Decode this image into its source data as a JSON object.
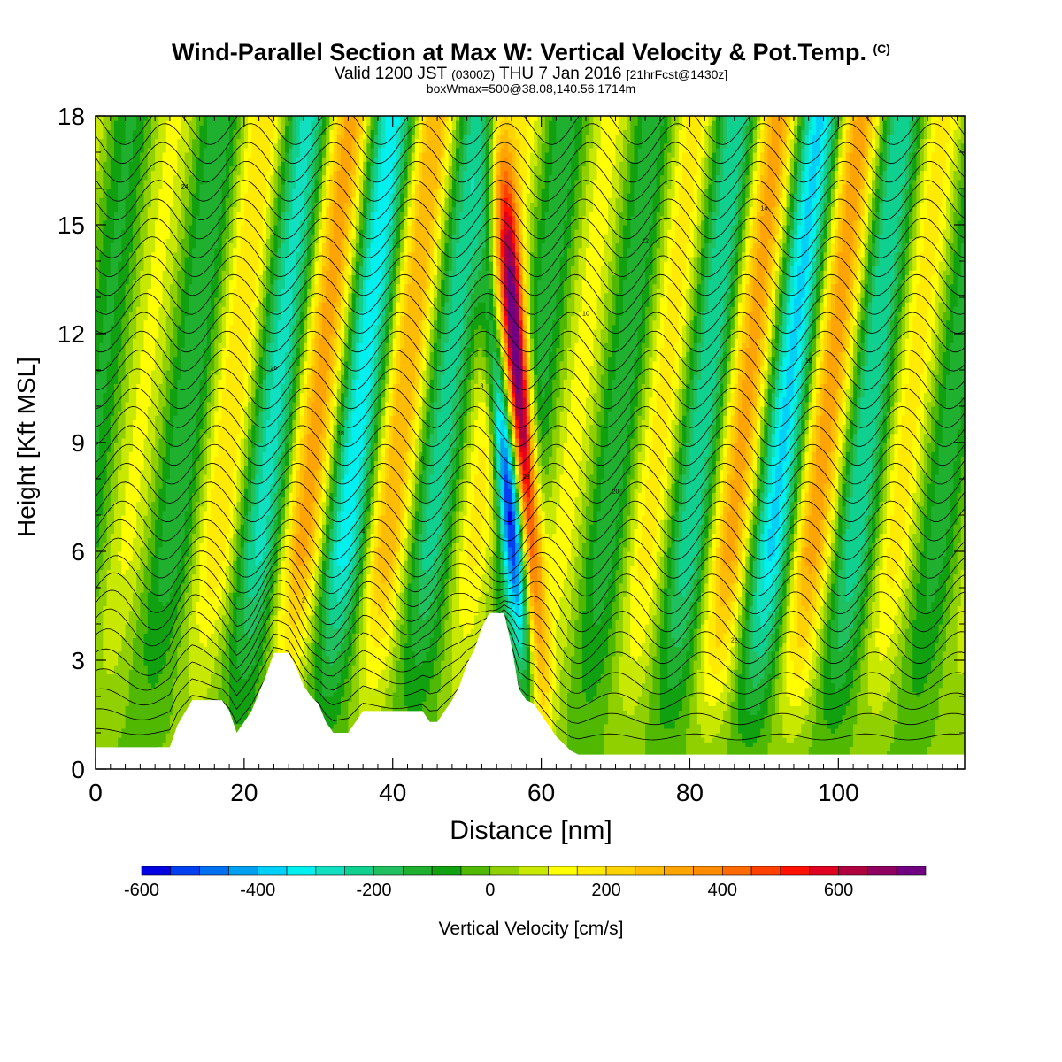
{
  "header": {
    "title": "Wind-Parallel Section at Max W: Vertical Velocity & Pot.Temp.",
    "title_suffix": "(C)",
    "valid_pre": "Valid 1200 JST",
    "valid_utc": "(0300Z)",
    "valid_post": "THU 7 Jan 2016",
    "forecast": "[21hrFcst@1430z]",
    "box_info": "boxWmax=500@38.08,140.56,1714m"
  },
  "chart_data": {
    "type": "heatmap",
    "xlabel": "Distance [nm]",
    "ylabel": "Height [Kft MSL]",
    "xlim": [
      0,
      117
    ],
    "ylim": [
      0,
      18
    ],
    "x_ticks": [
      0,
      20,
      40,
      60,
      80,
      100
    ],
    "y_ticks": [
      0,
      3,
      6,
      9,
      12,
      15,
      18
    ],
    "colorbar": {
      "label": "Vertical Velocity [cm/s]",
      "range": [
        -600,
        750
      ],
      "step": 50,
      "ticks": [
        -600,
        -400,
        -200,
        0,
        200,
        400,
        600
      ],
      "colors": [
        "#0000e0",
        "#0040f0",
        "#0070f0",
        "#00a0f0",
        "#00d0f8",
        "#00f0f0",
        "#10e0c0",
        "#10d090",
        "#20c060",
        "#20b030",
        "#10a010",
        "#50b800",
        "#90d000",
        "#c8e800",
        "#ffff00",
        "#ffea00",
        "#ffd200",
        "#ffbc00",
        "#ffa400",
        "#ff8c00",
        "#ff6a00",
        "#ff4000",
        "#ff1000",
        "#e00020",
        "#b00040",
        "#900060",
        "#700080"
      ]
    },
    "terrain_kft": [
      [
        0,
        0.6
      ],
      [
        10,
        0.6
      ],
      [
        11,
        1.2
      ],
      [
        13,
        1.9
      ],
      [
        17,
        1.9
      ],
      [
        18,
        1.6
      ],
      [
        19,
        1.0
      ],
      [
        20,
        1.3
      ],
      [
        21,
        1.6
      ],
      [
        22,
        2.1
      ],
      [
        23,
        2.6
      ],
      [
        24,
        3.2
      ],
      [
        26,
        3.2
      ],
      [
        27,
        2.8
      ],
      [
        28,
        2.3
      ],
      [
        29,
        2.0
      ],
      [
        30,
        1.8
      ],
      [
        31,
        1.3
      ],
      [
        32,
        1.0
      ],
      [
        34,
        1.0
      ],
      [
        35,
        1.3
      ],
      [
        36,
        1.6
      ],
      [
        44,
        1.6
      ],
      [
        45,
        1.3
      ],
      [
        46,
        1.3
      ],
      [
        47,
        1.6
      ],
      [
        48,
        1.9
      ],
      [
        49,
        2.3
      ],
      [
        50,
        2.9
      ],
      [
        51,
        3.3
      ],
      [
        52,
        3.9
      ],
      [
        53,
        4.3
      ],
      [
        55,
        4.3
      ],
      [
        56,
        3.4
      ],
      [
        57,
        2.2
      ],
      [
        58,
        1.9
      ],
      [
        59,
        1.8
      ],
      [
        60,
        1.5
      ],
      [
        61,
        1.2
      ],
      [
        62,
        0.9
      ],
      [
        63,
        0.7
      ],
      [
        64,
        0.5
      ],
      [
        65,
        0.4
      ],
      [
        117,
        0.4
      ]
    ],
    "updraft_bands_nm_at_surface": [
      13,
      22,
      34,
      50,
      57,
      63,
      73,
      84,
      93,
      104,
      113
    ],
    "max_updraft_cms": 700,
    "min_downdraft_cms": -550,
    "theta_contour_labels": [
      "2",
      "4",
      "6",
      "8",
      "10",
      "12",
      "14",
      "16",
      "18",
      "20",
      "22",
      "24",
      "26",
      "28"
    ]
  }
}
